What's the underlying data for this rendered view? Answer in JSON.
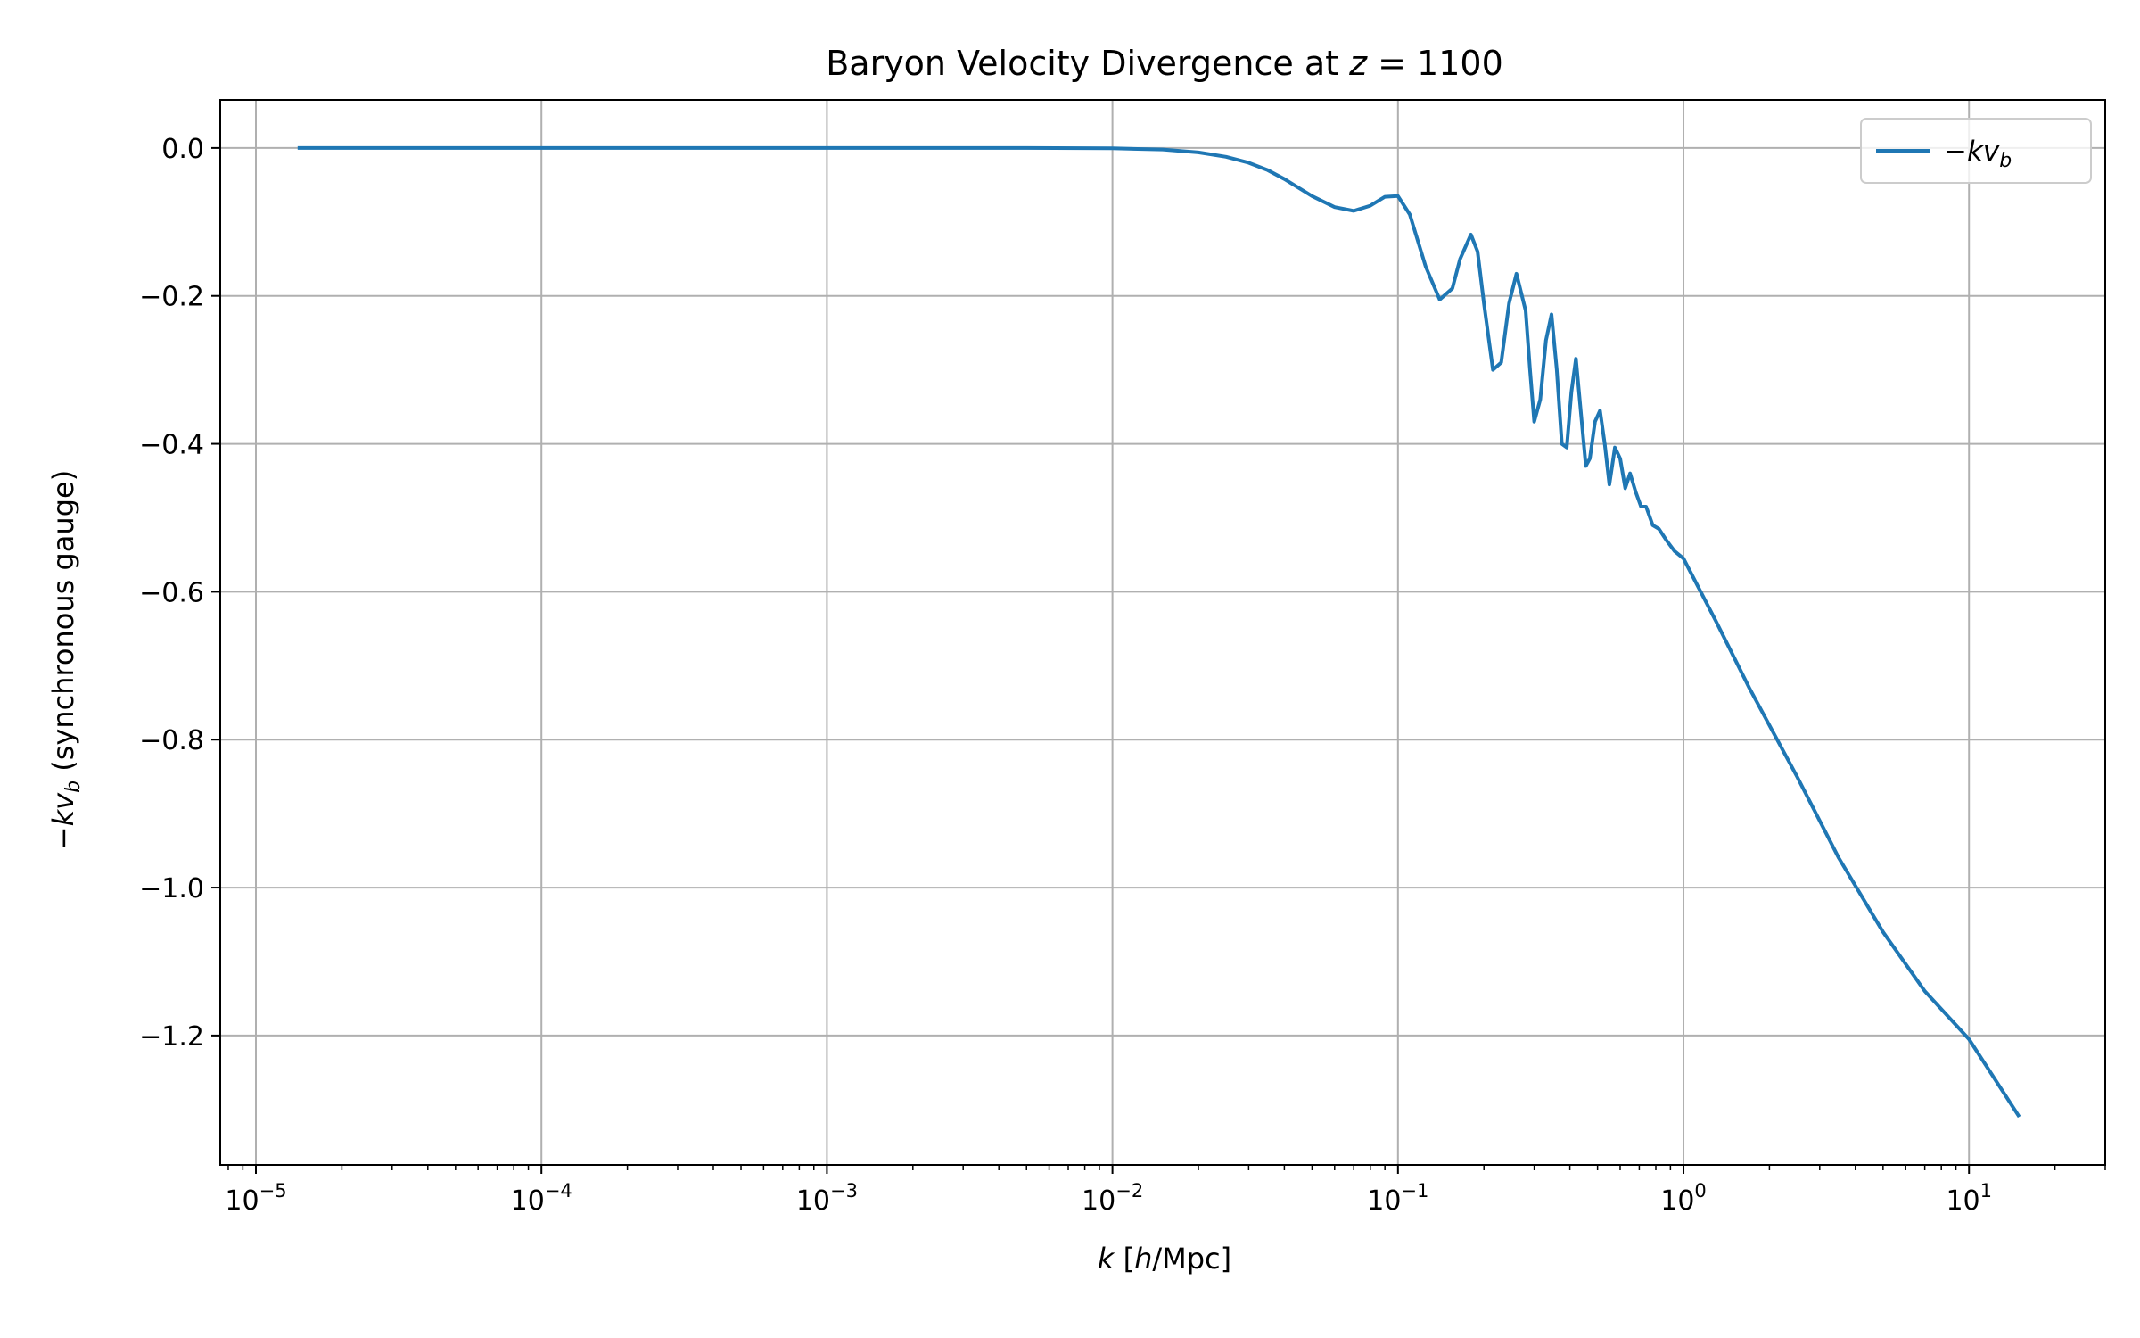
{
  "chart_data": {
    "type": "line",
    "title_prefix": "Baryon Velocity Divergence at ",
    "title_var": "z",
    "title_eq": " = 1100",
    "xlabel": {
      "var": "k",
      "rest": " [",
      "unit_var": "h",
      "unit_rest": "/Mpc]"
    },
    "ylabel": {
      "sign": "−",
      "var": "kv",
      "sub": "b",
      "rest": " (synchronous gauge)"
    },
    "x_scale": "log",
    "xlim": [
      7.5e-06,
      30
    ],
    "ylim": [
      -1.375,
      0.065
    ],
    "x_ticks": [
      {
        "value": 1e-05,
        "base": "10",
        "exp": "−5"
      },
      {
        "value": 0.0001,
        "base": "10",
        "exp": "−4"
      },
      {
        "value": 0.001,
        "base": "10",
        "exp": "−3"
      },
      {
        "value": 0.01,
        "base": "10",
        "exp": "−2"
      },
      {
        "value": 0.1,
        "base": "10",
        "exp": "−1"
      },
      {
        "value": 1,
        "base": "10",
        "exp": "0"
      },
      {
        "value": 10,
        "base": "10",
        "exp": "1"
      }
    ],
    "y_ticks": [
      {
        "value": 0.0,
        "label": "0.0"
      },
      {
        "value": -0.2,
        "label": "−0.2"
      },
      {
        "value": -0.4,
        "label": "−0.4"
      },
      {
        "value": -0.6,
        "label": "−0.6"
      },
      {
        "value": -0.8,
        "label": "−0.8"
      },
      {
        "value": -1.0,
        "label": "−1.0"
      },
      {
        "value": -1.2,
        "label": "−1.2"
      }
    ],
    "grid": true,
    "legend_position": "top-right",
    "series": [
      {
        "name": {
          "sign": "−",
          "var": "kv",
          "sub": "b"
        },
        "color": "#1f77b4",
        "x": [
          1.4e-05,
          0.0001,
          0.001,
          0.005,
          0.01,
          0.015,
          0.02,
          0.025,
          0.03,
          0.035,
          0.04,
          0.05,
          0.06,
          0.07,
          0.08,
          0.09,
          0.1,
          0.11,
          0.125,
          0.14,
          0.155,
          0.165,
          0.18,
          0.19,
          0.2,
          0.215,
          0.23,
          0.245,
          0.26,
          0.28,
          0.29,
          0.3,
          0.315,
          0.33,
          0.345,
          0.36,
          0.375,
          0.39,
          0.405,
          0.42,
          0.44,
          0.455,
          0.47,
          0.49,
          0.51,
          0.53,
          0.55,
          0.575,
          0.6,
          0.625,
          0.65,
          0.68,
          0.71,
          0.74,
          0.78,
          0.82,
          0.87,
          0.93,
          1.0,
          1.3,
          1.7,
          2.5,
          3.5,
          5.0,
          7.0,
          10.0,
          15.0
        ],
        "y": [
          0.0,
          0.0,
          0.0,
          0.0,
          -0.0005,
          -0.002,
          -0.006,
          -0.012,
          -0.02,
          -0.03,
          -0.042,
          -0.065,
          -0.08,
          -0.085,
          -0.078,
          -0.066,
          -0.065,
          -0.09,
          -0.16,
          -0.205,
          -0.19,
          -0.15,
          -0.117,
          -0.14,
          -0.21,
          -0.3,
          -0.29,
          -0.21,
          -0.17,
          -0.22,
          -0.3,
          -0.37,
          -0.34,
          -0.26,
          -0.225,
          -0.3,
          -0.4,
          -0.405,
          -0.33,
          -0.285,
          -0.37,
          -0.43,
          -0.42,
          -0.37,
          -0.355,
          -0.4,
          -0.455,
          -0.405,
          -0.42,
          -0.46,
          -0.44,
          -0.465,
          -0.485,
          -0.485,
          -0.51,
          -0.515,
          -0.53,
          -0.545,
          -0.555,
          -0.64,
          -0.73,
          -0.85,
          -0.96,
          -1.06,
          -1.14,
          -1.205,
          -1.31
        ]
      }
    ]
  }
}
